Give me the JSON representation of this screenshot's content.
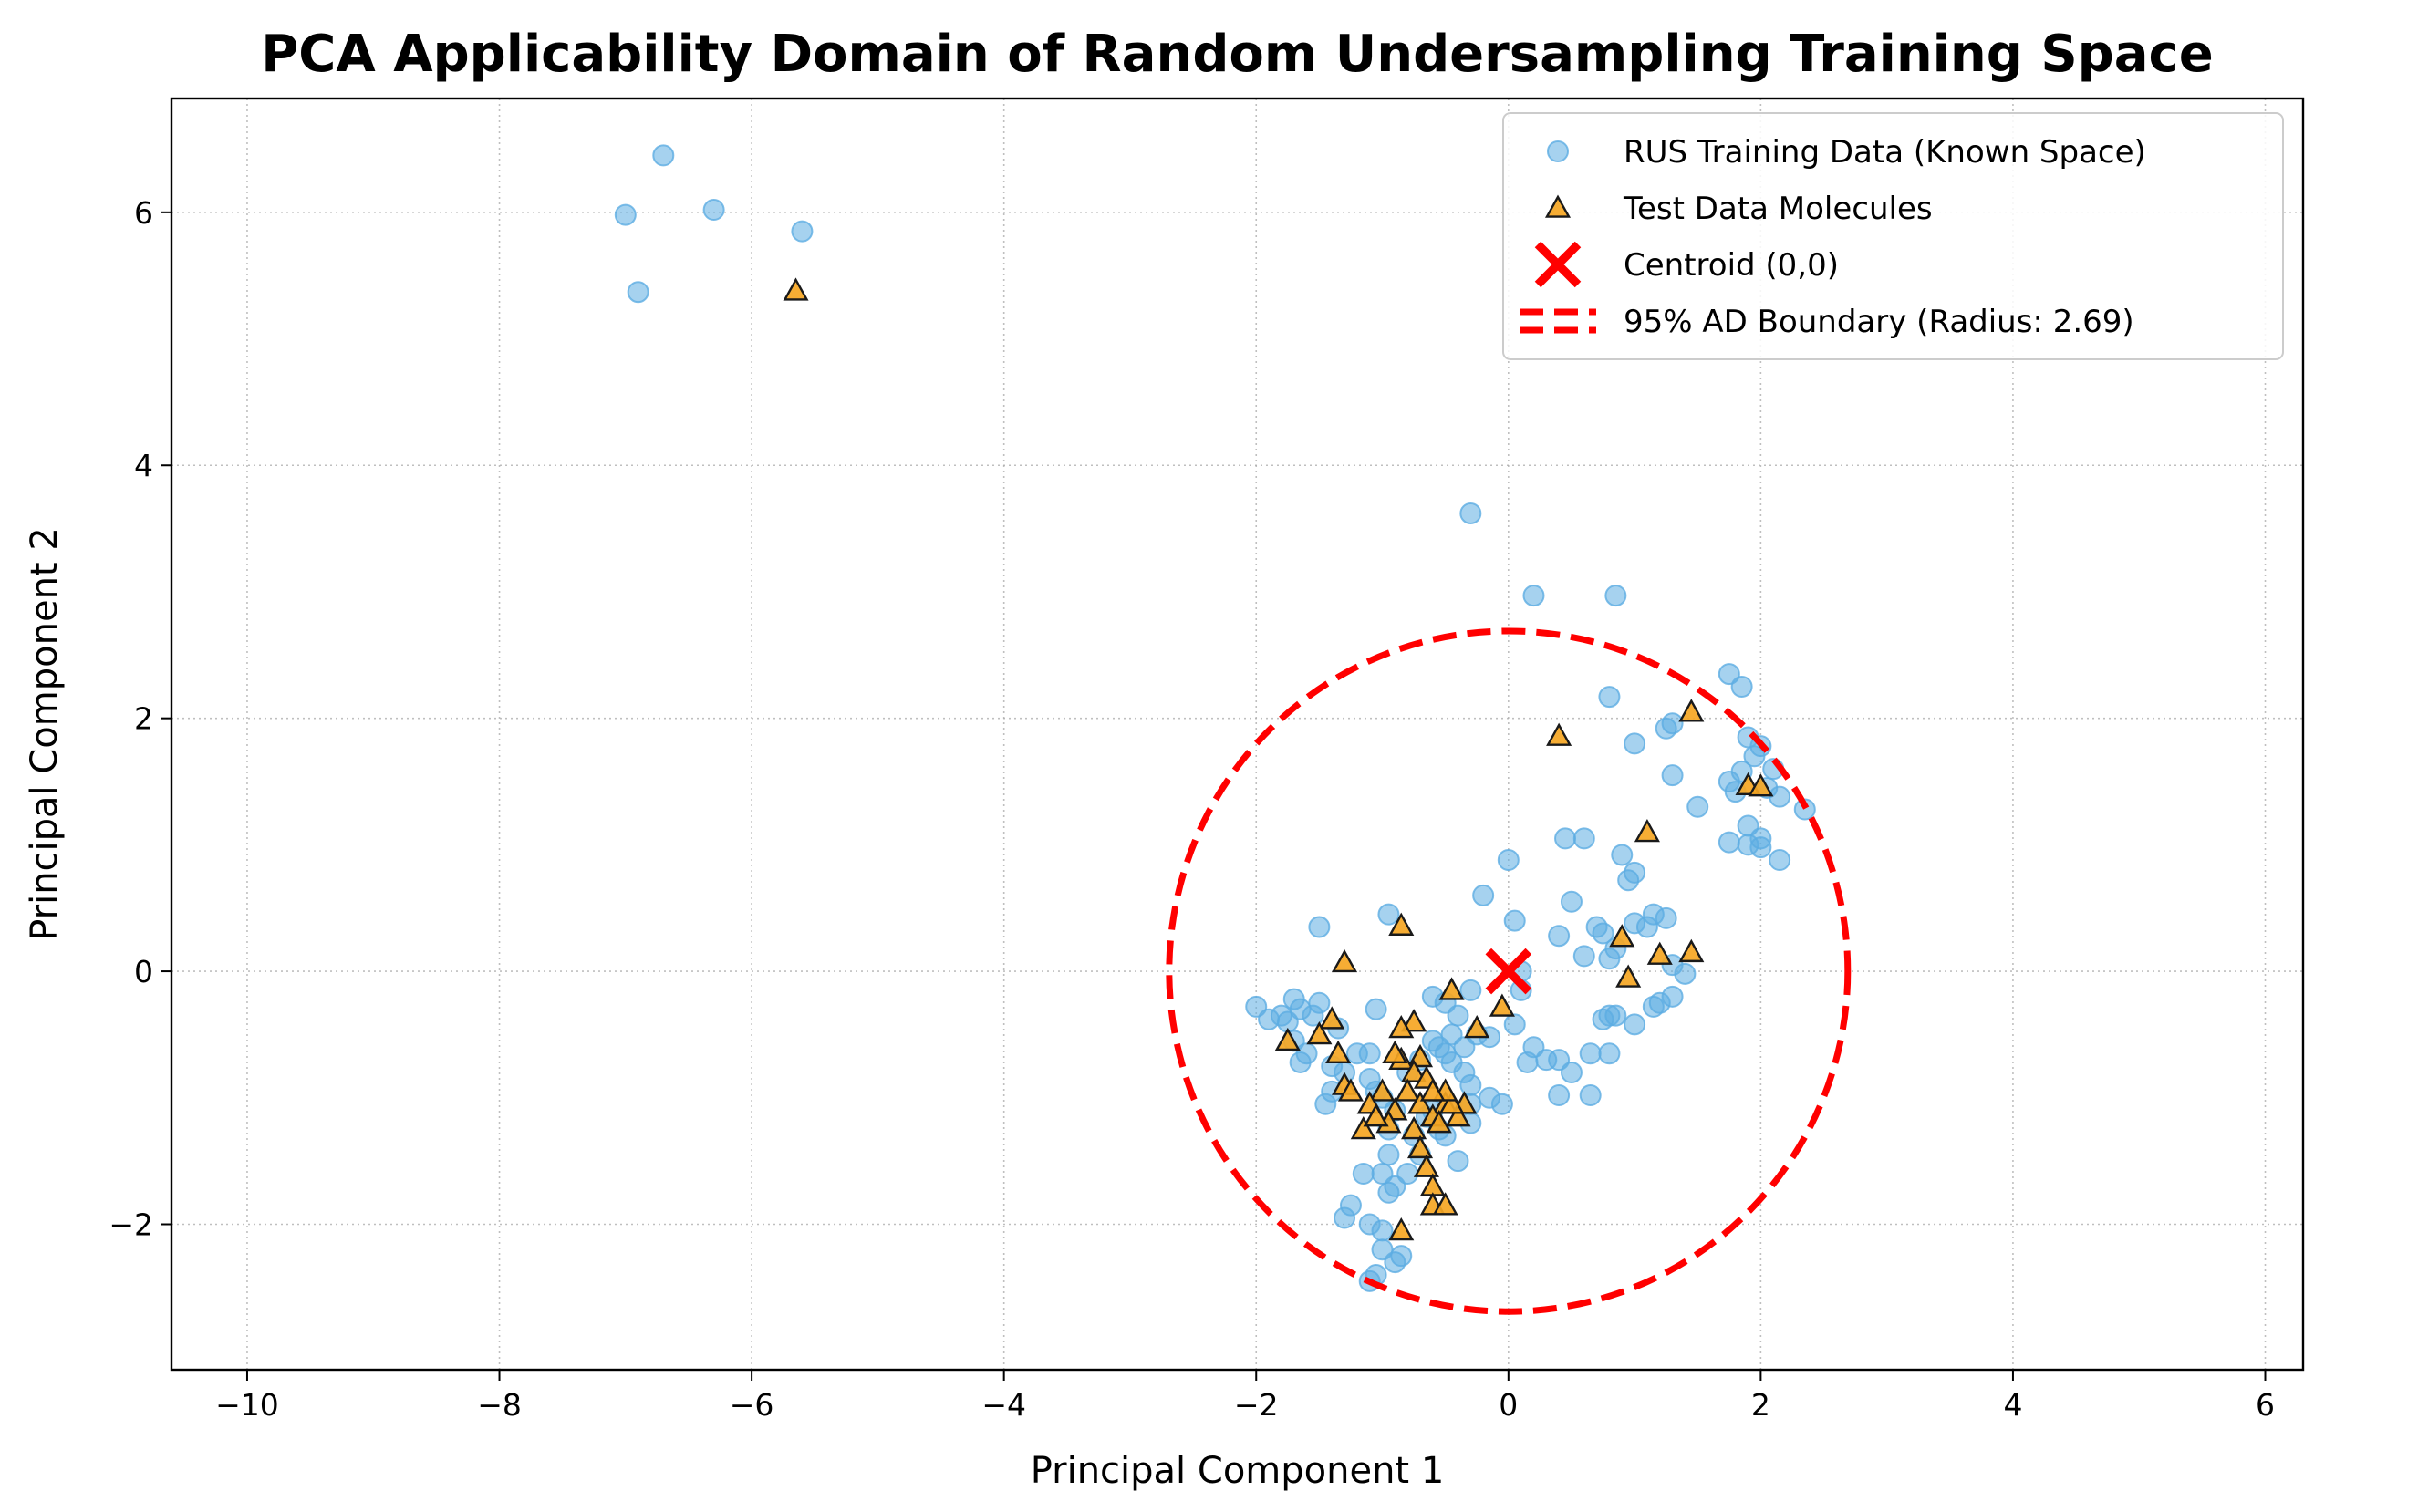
{
  "chart_data": {
    "type": "scatter",
    "title": "PCA Applicability Domain of Random Undersampling Training Space",
    "xlabel": "Principal Component 1",
    "ylabel": "Principal Component 2",
    "xlim": [
      -10.6,
      6.3
    ],
    "ylim": [
      -3.15,
      6.9
    ],
    "xticks": [
      -10,
      -8,
      -6,
      -4,
      -2,
      0,
      2,
      4,
      6
    ],
    "yticks": [
      -2,
      0,
      2,
      4,
      6
    ],
    "grid": true,
    "legend_position": "top-right",
    "colors": {
      "training": "#5DADE2",
      "test": "#F5A623",
      "test_edge": "#1a1a1a",
      "centroid": "#FF0000",
      "boundary": "#FF0000"
    },
    "series": [
      {
        "name": "RUS Training Data (Known Space)",
        "marker": "circle",
        "points": [
          [
            -6.7,
            6.45
          ],
          [
            -7.0,
            5.98
          ],
          [
            -6.3,
            6.02
          ],
          [
            -5.6,
            5.85
          ],
          [
            -6.9,
            5.37
          ],
          [
            -0.3,
            3.62
          ],
          [
            0.2,
            2.97
          ],
          [
            0.85,
            2.97
          ],
          [
            1.75,
            2.35
          ],
          [
            1.85,
            2.25
          ],
          [
            0.8,
            2.17
          ],
          [
            1.25,
            1.92
          ],
          [
            1.3,
            1.96
          ],
          [
            1.0,
            1.8
          ],
          [
            1.9,
            1.85
          ],
          [
            2.0,
            1.78
          ],
          [
            2.1,
            1.6
          ],
          [
            1.95,
            1.7
          ],
          [
            1.85,
            1.58
          ],
          [
            1.75,
            1.5
          ],
          [
            1.8,
            1.42
          ],
          [
            2.15,
            1.38
          ],
          [
            2.05,
            1.45
          ],
          [
            1.3,
            1.55
          ],
          [
            1.5,
            1.3
          ],
          [
            2.35,
            1.28
          ],
          [
            1.9,
            1.15
          ],
          [
            2.0,
            1.05
          ],
          [
            1.75,
            1.02
          ],
          [
            1.9,
            1.0
          ],
          [
            2.0,
            0.98
          ],
          [
            2.15,
            0.88
          ],
          [
            0.45,
            1.05
          ],
          [
            0.6,
            1.05
          ],
          [
            0.9,
            0.92
          ],
          [
            0.95,
            0.72
          ],
          [
            1.0,
            0.78
          ],
          [
            0.0,
            0.88
          ],
          [
            -0.2,
            0.6
          ],
          [
            0.05,
            0.4
          ],
          [
            0.5,
            0.55
          ],
          [
            0.7,
            0.35
          ],
          [
            0.75,
            0.3
          ],
          [
            0.85,
            0.18
          ],
          [
            1.15,
            0.45
          ],
          [
            1.25,
            0.42
          ],
          [
            1.1,
            0.35
          ],
          [
            1.0,
            0.38
          ],
          [
            0.4,
            0.28
          ],
          [
            0.6,
            0.12
          ],
          [
            0.8,
            0.1
          ],
          [
            1.3,
            0.05
          ],
          [
            1.4,
            -0.02
          ],
          [
            1.3,
            -0.2
          ],
          [
            1.2,
            -0.25
          ],
          [
            1.15,
            -0.28
          ],
          [
            1.0,
            -0.42
          ],
          [
            0.8,
            -0.35
          ],
          [
            0.75,
            -0.38
          ],
          [
            0.85,
            -0.35
          ],
          [
            0.65,
            -0.65
          ],
          [
            0.8,
            -0.65
          ],
          [
            0.5,
            -0.8
          ],
          [
            0.4,
            -0.98
          ],
          [
            0.65,
            -0.98
          ],
          [
            0.4,
            -0.7
          ],
          [
            0.2,
            -0.6
          ],
          [
            0.3,
            -0.7
          ],
          [
            0.15,
            -0.72
          ],
          [
            0.1,
            -0.15
          ],
          [
            0.05,
            -0.42
          ],
          [
            0.1,
            0.0
          ],
          [
            -0.15,
            -0.52
          ],
          [
            -0.3,
            -0.15
          ],
          [
            -0.35,
            -0.6
          ],
          [
            -0.4,
            -0.35
          ],
          [
            -0.3,
            -0.9
          ],
          [
            -0.3,
            -1.05
          ],
          [
            -0.05,
            -1.05
          ],
          [
            -0.15,
            -1.0
          ],
          [
            -0.3,
            -1.2
          ],
          [
            -0.4,
            -1.5
          ],
          [
            -0.5,
            -1.3
          ],
          [
            -0.5,
            -0.65
          ],
          [
            -0.45,
            -0.5
          ],
          [
            -0.6,
            -0.2
          ],
          [
            -0.7,
            -0.7
          ],
          [
            -0.8,
            -0.8
          ],
          [
            -0.6,
            -1.1
          ],
          [
            -0.7,
            -1.45
          ],
          [
            -0.8,
            -1.6
          ],
          [
            -0.9,
            -1.7
          ],
          [
            -0.95,
            -1.75
          ],
          [
            -0.95,
            -1.45
          ],
          [
            -0.95,
            -1.25
          ],
          [
            -0.9,
            -1.1
          ],
          [
            -1.0,
            -1.0
          ],
          [
            -1.05,
            -0.95
          ],
          [
            -1.1,
            -0.85
          ],
          [
            -1.1,
            -0.65
          ],
          [
            -1.05,
            -0.3
          ],
          [
            -1.2,
            -0.65
          ],
          [
            -1.3,
            -0.8
          ],
          [
            -1.4,
            -0.95
          ],
          [
            -1.4,
            -0.75
          ],
          [
            -1.45,
            -1.05
          ],
          [
            -1.6,
            -0.65
          ],
          [
            -1.65,
            -0.72
          ],
          [
            -1.7,
            -0.55
          ],
          [
            -1.75,
            -0.4
          ],
          [
            -1.8,
            -0.35
          ],
          [
            -1.9,
            -0.38
          ],
          [
            -2.0,
            -0.28
          ],
          [
            -1.65,
            -0.3
          ],
          [
            -1.55,
            -0.35
          ],
          [
            -1.5,
            -0.25
          ],
          [
            -1.35,
            -0.45
          ],
          [
            -1.7,
            -0.22
          ],
          [
            -1.5,
            0.35
          ],
          [
            -0.95,
            0.45
          ],
          [
            -0.6,
            -0.55
          ],
          [
            -0.55,
            -0.6
          ],
          [
            -0.55,
            -1.25
          ],
          [
            -0.65,
            -1.15
          ],
          [
            -0.75,
            -1.3
          ],
          [
            -1.0,
            -1.6
          ],
          [
            -1.15,
            -1.6
          ],
          [
            -1.3,
            -1.95
          ],
          [
            -1.25,
            -1.85
          ],
          [
            -1.1,
            -2.0
          ],
          [
            -1.0,
            -2.05
          ],
          [
            -1.0,
            -2.2
          ],
          [
            -0.9,
            -2.3
          ],
          [
            -1.05,
            -2.4
          ],
          [
            -1.1,
            -2.45
          ],
          [
            -0.85,
            -2.25
          ],
          [
            -0.5,
            -0.25
          ],
          [
            -0.45,
            -0.72
          ],
          [
            -0.35,
            -0.8
          ],
          [
            -0.25,
            -0.5
          ]
        ]
      },
      {
        "name": "Test Data Molecules",
        "marker": "triangle",
        "points": [
          [
            -5.65,
            5.38
          ],
          [
            0.4,
            1.86
          ],
          [
            1.45,
            2.05
          ],
          [
            1.1,
            1.1
          ],
          [
            1.9,
            1.47
          ],
          [
            2.0,
            1.46
          ],
          [
            -0.85,
            0.36
          ],
          [
            -1.3,
            0.07
          ],
          [
            0.9,
            0.27
          ],
          [
            1.2,
            0.13
          ],
          [
            1.45,
            0.15
          ],
          [
            0.95,
            -0.05
          ],
          [
            -0.45,
            -0.15
          ],
          [
            -0.05,
            -0.28
          ],
          [
            -0.25,
            -0.45
          ],
          [
            -1.4,
            -0.38
          ],
          [
            -1.5,
            -0.5
          ],
          [
            -1.75,
            -0.55
          ],
          [
            -1.35,
            -0.65
          ],
          [
            -0.75,
            -0.4
          ],
          [
            -0.85,
            -0.45
          ],
          [
            -0.7,
            -0.68
          ],
          [
            -0.85,
            -0.7
          ],
          [
            -0.75,
            -0.8
          ],
          [
            -0.65,
            -0.85
          ],
          [
            -1.0,
            -0.95
          ],
          [
            -0.8,
            -0.95
          ],
          [
            -1.3,
            -0.9
          ],
          [
            -1.25,
            -0.95
          ],
          [
            -1.1,
            -1.05
          ],
          [
            -0.9,
            -1.1
          ],
          [
            -0.7,
            -1.05
          ],
          [
            -0.5,
            -1.05
          ],
          [
            -0.35,
            -1.05
          ],
          [
            -0.4,
            -1.15
          ],
          [
            -0.6,
            -1.15
          ],
          [
            -0.55,
            -1.2
          ],
          [
            -0.75,
            -1.25
          ],
          [
            -0.95,
            -1.2
          ],
          [
            -1.15,
            -1.25
          ],
          [
            -0.7,
            -1.4
          ],
          [
            -0.65,
            -1.55
          ],
          [
            -0.6,
            -1.7
          ],
          [
            -0.6,
            -1.85
          ],
          [
            -0.5,
            -1.85
          ],
          [
            -0.85,
            -2.05
          ],
          [
            -0.45,
            -1.05
          ],
          [
            -0.5,
            -0.95
          ],
          [
            -0.6,
            -0.95
          ],
          [
            -0.9,
            -0.65
          ],
          [
            -1.05,
            -1.15
          ]
        ]
      },
      {
        "name": "Centroid (0,0)",
        "marker": "x",
        "points": [
          [
            0.0,
            0.0
          ]
        ]
      },
      {
        "name": "95% AD Boundary (Radius: 2.69)",
        "marker": "dashed-circle",
        "center": [
          0.0,
          0.0
        ],
        "radius": 2.69
      }
    ]
  }
}
